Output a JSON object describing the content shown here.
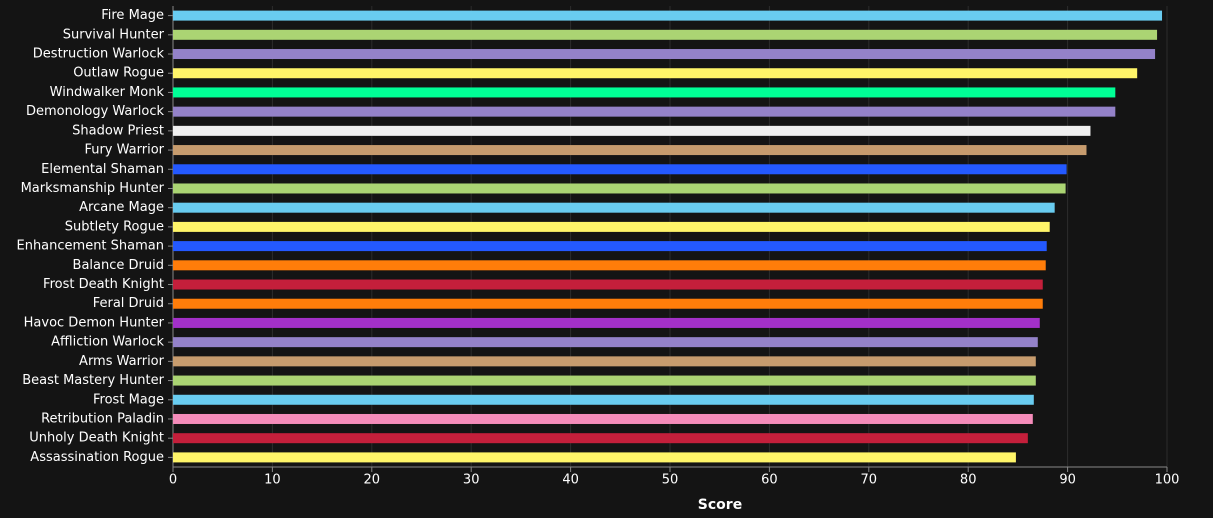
{
  "chart_data": {
    "type": "bar",
    "orientation": "horizontal",
    "x_label": "Score",
    "categories": [
      "Fire Mage",
      "Survival Hunter",
      "Destruction Warlock",
      "Outlaw Rogue",
      "Windwalker Monk",
      "Demonology Warlock",
      "Shadow Priest",
      "Fury Warrior",
      "Elemental Shaman",
      "Marksmanship Hunter",
      "Arcane Mage",
      "Subtlety Rogue",
      "Enhancement Shaman",
      "Balance Druid",
      "Frost Death Knight",
      "Feral Druid",
      "Havoc Demon Hunter",
      "Affliction Warlock",
      "Arms Warrior",
      "Beast Mastery Hunter",
      "Frost Mage",
      "Retribution Paladin",
      "Unholy Death Knight",
      "Assassination Rogue"
    ],
    "values": [
      99.5,
      99.0,
      98.8,
      97.0,
      94.8,
      94.8,
      92.3,
      91.9,
      89.9,
      89.8,
      88.7,
      88.2,
      87.9,
      87.8,
      87.5,
      87.5,
      87.2,
      87.0,
      86.8,
      86.8,
      86.6,
      86.5,
      86.0,
      84.8
    ],
    "colors": [
      "#69ccf0",
      "#abd473",
      "#9482c9",
      "#fff569",
      "#00ff96",
      "#9482c9",
      "#f0f0f0",
      "#c79c6e",
      "#2459ff",
      "#abd473",
      "#69ccf0",
      "#fff569",
      "#2459ff",
      "#ff7d0a",
      "#c41f3b",
      "#ff7d0a",
      "#a330c9",
      "#9482c9",
      "#c79c6e",
      "#abd473",
      "#69ccf0",
      "#f58cba",
      "#c41f3b",
      "#fff569"
    ],
    "xlim": [
      0,
      100
    ],
    "xticks": [
      0,
      10,
      20,
      30,
      40,
      50,
      60,
      70,
      80,
      90,
      100
    ],
    "grid": true
  }
}
